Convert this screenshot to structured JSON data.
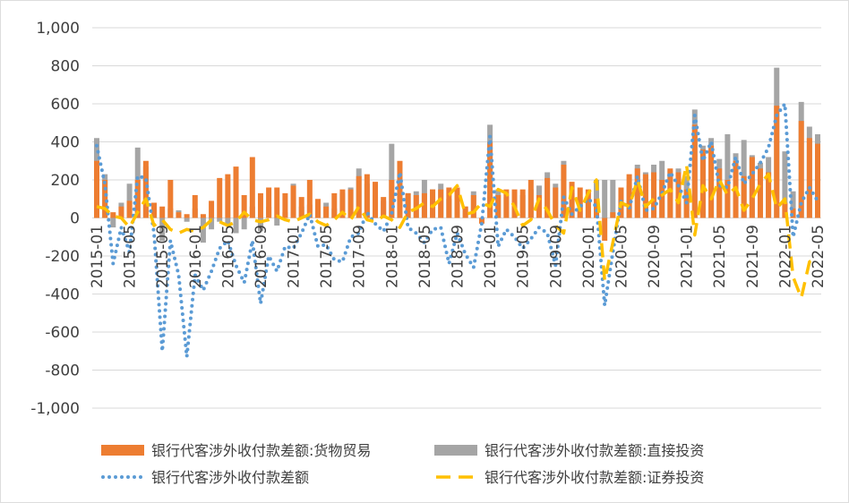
{
  "chart_data": {
    "type": "bar-line",
    "categories": [
      "2015-01",
      null,
      null,
      null,
      "2015-05",
      null,
      null,
      null,
      "2015-09",
      null,
      null,
      null,
      "2016-01",
      null,
      null,
      null,
      "2016-05",
      null,
      null,
      null,
      "2016-09",
      null,
      null,
      null,
      "2017-01",
      null,
      null,
      null,
      "2017-05",
      null,
      null,
      null,
      "2017-09",
      null,
      null,
      null,
      "2018-01",
      null,
      null,
      null,
      "2018-05",
      null,
      null,
      null,
      "2018-09",
      null,
      null,
      null,
      "2019-01",
      null,
      null,
      null,
      "2019-05",
      null,
      null,
      null,
      "2019-09",
      null,
      null,
      null,
      "2020-01",
      null,
      null,
      null,
      "2020-05",
      null,
      null,
      null,
      "2020-09",
      null,
      null,
      null,
      "2021-01",
      null,
      null,
      null,
      "2021-05",
      null,
      null,
      null,
      "2021-09",
      null,
      null,
      null,
      "2022-01",
      null,
      null,
      null,
      "2022-05"
    ],
    "series": [
      {
        "name": "银行代客涉外收付款差额:货物贸易",
        "kind": "bar",
        "color": "#ed7d31",
        "values": [
          300,
          200,
          30,
          60,
          90,
          200,
          300,
          80,
          60,
          200,
          30,
          20,
          120,
          20,
          90,
          210,
          230,
          270,
          120,
          320,
          130,
          160,
          160,
          130,
          170,
          110,
          200,
          100,
          60,
          130,
          150,
          150,
          220,
          230,
          190,
          110,
          200,
          300,
          130,
          120,
          130,
          150,
          150,
          160,
          160,
          60,
          120,
          -30,
          400,
          120,
          150,
          150,
          150,
          200,
          120,
          210,
          160,
          280,
          190,
          160,
          150,
          100,
          -120,
          30,
          160,
          230,
          260,
          230,
          240,
          200,
          260,
          240,
          150,
          490,
          360,
          380,
          260,
          200,
          300,
          220,
          320,
          260,
          240,
          590,
          80,
          50,
          510,
          420,
          390
        ]
      },
      {
        "name": "银行代客涉外收付款差额:直接投资",
        "kind": "bar",
        "color": "#a5a5a5",
        "values": [
          420,
          230,
          -50,
          80,
          180,
          370,
          270,
          60,
          -120,
          50,
          40,
          -20,
          50,
          -130,
          -60,
          -20,
          -40,
          -80,
          -60,
          60,
          -70,
          60,
          -40,
          30,
          180,
          60,
          70,
          60,
          80,
          50,
          130,
          160,
          260,
          180,
          120,
          90,
          390,
          170,
          130,
          140,
          200,
          150,
          180,
          100,
          80,
          60,
          140,
          -10,
          490,
          150,
          110,
          90,
          120,
          150,
          170,
          240,
          180,
          300,
          130,
          110,
          80,
          200,
          200,
          200,
          100,
          170,
          280,
          240,
          280,
          300,
          250,
          260,
          220,
          570,
          380,
          420,
          310,
          440,
          340,
          410,
          330,
          290,
          320,
          790,
          350,
          140,
          610,
          480,
          440
        ]
      },
      {
        "name": "银行代客涉外收付款差额",
        "kind": "dotted",
        "color": "#5b9bd5",
        "values": [
          380,
          180,
          -240,
          -50,
          -180,
          220,
          210,
          -80,
          -700,
          -120,
          -300,
          -730,
          -300,
          -380,
          -280,
          -160,
          -120,
          -250,
          -340,
          -120,
          -450,
          -200,
          -280,
          -150,
          -160,
          -80,
          20,
          -150,
          -140,
          -220,
          -230,
          -100,
          -80,
          30,
          -30,
          -70,
          20,
          240,
          -50,
          -80,
          -130,
          -60,
          -50,
          -240,
          -80,
          -190,
          -260,
          -30,
          430,
          -150,
          -60,
          -100,
          -160,
          -110,
          -50,
          -80,
          -250,
          110,
          20,
          60,
          100,
          60,
          -460,
          -180,
          90,
          50,
          220,
          40,
          50,
          130,
          240,
          170,
          80,
          540,
          300,
          400,
          170,
          160,
          320,
          180,
          230,
          290,
          370,
          540,
          600,
          -100,
          80,
          160,
          90
        ]
      },
      {
        "name": "银行代客涉外收付款差额:证券投资",
        "kind": "dashed",
        "color": "#ffc000",
        "values": [
          60,
          50,
          10,
          0,
          -50,
          30,
          100,
          -40,
          -10,
          -60,
          -80,
          -60,
          -70,
          -50,
          -10,
          -20,
          -40,
          -20,
          30,
          -10,
          -20,
          -10,
          10,
          -10,
          -20,
          0,
          20,
          -20,
          -40,
          -10,
          30,
          -10,
          60,
          -10,
          -20,
          10,
          -10,
          -50,
          30,
          50,
          80,
          60,
          100,
          120,
          170,
          20,
          30,
          80,
          60,
          150,
          130,
          60,
          -40,
          -10,
          100,
          40,
          -40,
          -80,
          160,
          40,
          130,
          200,
          -330,
          -130,
          80,
          60,
          200,
          60,
          100,
          120,
          150,
          80,
          280,
          -90,
          170,
          100,
          200,
          120,
          160,
          40,
          100,
          180,
          230,
          50,
          100,
          -310,
          -420,
          -230,
          -210
        ]
      }
    ],
    "ylim": [
      -1000,
      1000
    ],
    "yticks": [
      {
        "value": -1000,
        "label": "-1,000"
      },
      -800,
      -600,
      -400,
      -200,
      0,
      200,
      400,
      600,
      800,
      {
        "value": 1000,
        "label": "1,000"
      }
    ],
    "grid": true,
    "legend": "bottom"
  }
}
